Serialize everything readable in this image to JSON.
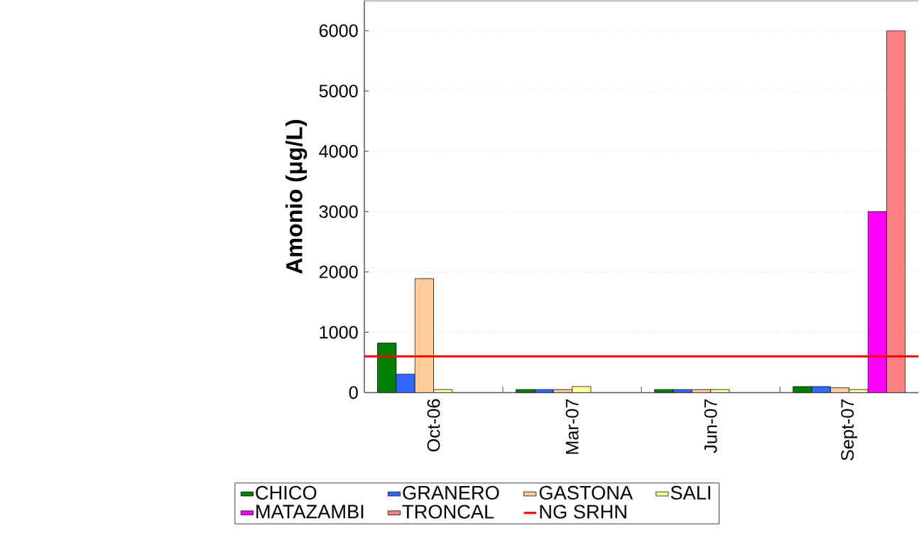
{
  "chart_data": {
    "type": "bar",
    "ylabel": "Amonio (μg/L)",
    "categories": [
      "Oct-06",
      "Mar-07",
      "Jun-07",
      "Sept-07"
    ],
    "series": [
      {
        "name": "CHICO",
        "color": "#008000",
        "values": [
          820,
          50,
          50,
          100
        ]
      },
      {
        "name": "GRANERO",
        "color": "#3366ff",
        "values": [
          310,
          50,
          50,
          100
        ]
      },
      {
        "name": "GASTONA",
        "color": "#ffcc99",
        "values": [
          1890,
          50,
          50,
          80
        ]
      },
      {
        "name": "SALI",
        "color": "#ffff99",
        "values": [
          50,
          100,
          50,
          50
        ]
      },
      {
        "name": "MATAZAMBI",
        "color": "#ff00ff",
        "values": [
          null,
          null,
          null,
          3000
        ]
      },
      {
        "name": "TRONCAL",
        "color": "#ff8080",
        "values": [
          null,
          null,
          null,
          6000
        ]
      }
    ],
    "ref_lines": [
      {
        "axis": "y",
        "value": 600,
        "label": "NG SRHN",
        "color": "#ff0000"
      }
    ],
    "ylim": [
      0,
      6500
    ],
    "yticks": [
      0,
      1000,
      2000,
      3000,
      4000,
      5000,
      6000
    ],
    "grid": "y",
    "legend": "bottom"
  }
}
